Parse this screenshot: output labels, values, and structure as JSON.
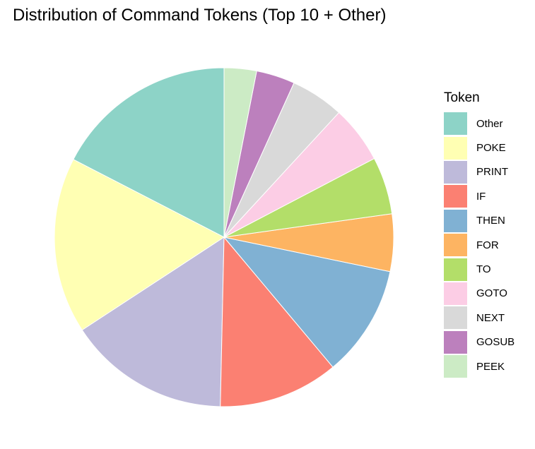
{
  "chart_data": {
    "type": "pie",
    "title": "Distribution of Command Tokens (Top 10 + Other)",
    "legend_title": "Token",
    "legend_position": "right",
    "slices": [
      {
        "label": "Other",
        "value": 17.5,
        "color": "#8DD3C7"
      },
      {
        "label": "POKE",
        "value": 16.9,
        "color": "#FFFFB3"
      },
      {
        "label": "PRINT",
        "value": 15.5,
        "color": "#BEBADA"
      },
      {
        "label": "IF",
        "value": 11.5,
        "color": "#FB8072"
      },
      {
        "label": "THEN",
        "value": 10.7,
        "color": "#80B1D3"
      },
      {
        "label": "FOR",
        "value": 5.5,
        "color": "#FDB462"
      },
      {
        "label": "TO",
        "value": 5.5,
        "color": "#B3DE69"
      },
      {
        "label": "GOTO",
        "value": 5.5,
        "color": "#FCCDE5"
      },
      {
        "label": "NEXT",
        "value": 5.1,
        "color": "#D9D9D9"
      },
      {
        "label": "GOSUB",
        "value": 3.7,
        "color": "#BC80BD"
      },
      {
        "label": "PEEK",
        "value": 3.1,
        "color": "#CCEBC5"
      }
    ]
  }
}
